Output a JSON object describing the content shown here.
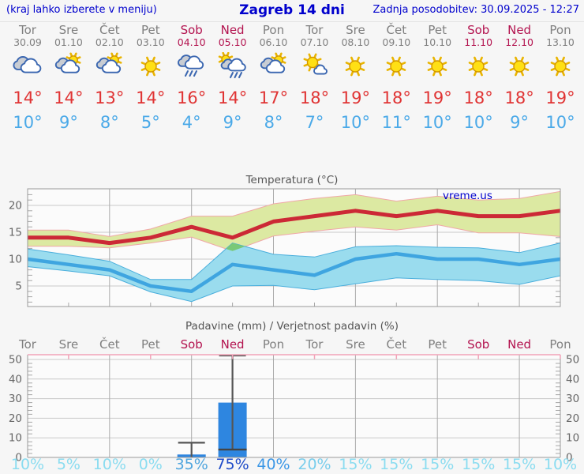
{
  "header": {
    "left": "(kraj lahko izberete v meniju)",
    "title": "Zagreb 14 dni",
    "updated": "Zadnja posodobitev: 30.09.2025 - 12:27"
  },
  "colors": {
    "header_blue": "#0000CD",
    "weekday_gray": "#7F7F7F",
    "weekend_red": "#B3134F",
    "tmax_red": "#E03434",
    "tmin_blue": "#4AA9E8",
    "max_line": "#CC2936",
    "max_band_fill": "#DCE9A2",
    "max_band_edge": "#F0A8A8",
    "min_line": "#3FA5E0",
    "min_band_fill": "#9ADCEE",
    "min_band_edge": "#49AEDC",
    "overlap_green": "#78C878",
    "bar_blue": "#2E86E0",
    "whisker_gray": "#555555",
    "grid_major": "#C9C9C9",
    "grid_vertical": "#ABABAB",
    "axis_border": "#999999",
    "minor_tick": "#A8A8A8",
    "precip_top_pink": "#F2A3B8",
    "chart_bg": "#FBFBFB"
  },
  "days": [
    {
      "name": "Tor",
      "date": "30.09",
      "weekend": false,
      "icon": "cloudy",
      "tmax_label": "14°",
      "tmin_label": "10°",
      "prob_label": "10%",
      "prob_color": "#8ADCF0"
    },
    {
      "name": "Sre",
      "date": "01.10",
      "weekend": false,
      "icon": "partly-cloudy",
      "tmax_label": "14°",
      "tmin_label": "9°",
      "prob_label": "5%",
      "prob_color": "#8ADCF0"
    },
    {
      "name": "Čet",
      "date": "02.10",
      "weekend": false,
      "icon": "partly-cloudy",
      "tmax_label": "13°",
      "tmin_label": "8°",
      "prob_label": "10%",
      "prob_color": "#8ADCF0"
    },
    {
      "name": "Pet",
      "date": "03.10",
      "weekend": false,
      "icon": "sunny",
      "tmax_label": "14°",
      "tmin_label": "5°",
      "prob_label": "0%",
      "prob_color": "#8ADCF0"
    },
    {
      "name": "Sob",
      "date": "04.10",
      "weekend": true,
      "icon": "rain",
      "tmax_label": "16°",
      "tmin_label": "4°",
      "prob_label": "35%",
      "prob_color": "#4FA5DE"
    },
    {
      "name": "Ned",
      "date": "05.10",
      "weekend": true,
      "icon": "sun-rain",
      "tmax_label": "14°",
      "tmin_label": "9°",
      "prob_label": "75%",
      "prob_color": "#1E4BC8"
    },
    {
      "name": "Pon",
      "date": "06.10",
      "weekend": false,
      "icon": "partly-cloudy",
      "tmax_label": "17°",
      "tmin_label": "8°",
      "prob_label": "40%",
      "prob_color": "#3C97E6"
    },
    {
      "name": "Tor",
      "date": "07.10",
      "weekend": false,
      "icon": "mostly-sunny",
      "tmax_label": "18°",
      "tmin_label": "7°",
      "prob_label": "20%",
      "prob_color": "#79CDEC"
    },
    {
      "name": "Sre",
      "date": "08.10",
      "weekend": false,
      "icon": "sunny",
      "tmax_label": "19°",
      "tmin_label": "10°",
      "prob_label": "15%",
      "prob_color": "#8ADCF0"
    },
    {
      "name": "Čet",
      "date": "09.10",
      "weekend": false,
      "icon": "sunny",
      "tmax_label": "18°",
      "tmin_label": "11°",
      "prob_label": "15%",
      "prob_color": "#8ADCF0"
    },
    {
      "name": "Pet",
      "date": "10.10",
      "weekend": false,
      "icon": "sunny",
      "tmax_label": "19°",
      "tmin_label": "10°",
      "prob_label": "15%",
      "prob_color": "#8ADCF0"
    },
    {
      "name": "Sob",
      "date": "11.10",
      "weekend": true,
      "icon": "sunny",
      "tmax_label": "18°",
      "tmin_label": "10°",
      "prob_label": "15%",
      "prob_color": "#8ADCF0"
    },
    {
      "name": "Ned",
      "date": "12.10",
      "weekend": true,
      "icon": "sunny",
      "tmax_label": "18°",
      "tmin_label": "9°",
      "prob_label": "15%",
      "prob_color": "#8ADCF0"
    },
    {
      "name": "Pon",
      "date": "13.10",
      "weekend": false,
      "icon": "sunny",
      "tmax_label": "19°",
      "tmin_label": "10°",
      "prob_label": "10%",
      "prob_color": "#8ADCF0"
    }
  ],
  "chart_data": [
    {
      "type": "line",
      "title": "Temperatura (°C)",
      "watermark": "vreme.us",
      "x_categories": [
        "Tor 30.09",
        "Sre 01.10",
        "Čet 02.10",
        "Pet 03.10",
        "Sob 04.10",
        "Ned 05.10",
        "Pon 06.10",
        "Tor 07.10",
        "Sre 08.10",
        "Čet 09.10",
        "Pet 10.10",
        "Sob 11.10",
        "Ned 12.10",
        "Pon 13.10"
      ],
      "series": [
        {
          "name": "tmax",
          "values": [
            14,
            14,
            13,
            14,
            16,
            14,
            17,
            18,
            19,
            18,
            19,
            18,
            18,
            19
          ]
        },
        {
          "name": "tmax_range_high",
          "values": [
            15.4,
            15.4,
            14.2,
            15.6,
            18,
            18,
            20.3,
            21.3,
            22,
            20.8,
            21.7,
            21,
            21.3,
            22.6
          ]
        },
        {
          "name": "tmax_range_low",
          "values": [
            12.4,
            12.4,
            12.1,
            13,
            14.1,
            11.5,
            14.3,
            15.2,
            16,
            15.4,
            16.4,
            14.9,
            14.9,
            14.2
          ]
        },
        {
          "name": "tmin",
          "values": [
            10,
            9,
            8,
            5,
            4,
            9,
            8,
            7,
            10,
            11,
            10,
            10,
            9,
            10
          ]
        },
        {
          "name": "tmin_range_high",
          "values": [
            11.9,
            10.8,
            9.6,
            6.2,
            6.2,
            13,
            10.9,
            10.4,
            12.3,
            12.5,
            12.2,
            12.1,
            11.2,
            13
          ]
        },
        {
          "name": "tmin_range_low",
          "values": [
            8.6,
            7.8,
            6.9,
            3.9,
            2.1,
            5,
            5.1,
            4.3,
            5.4,
            6.5,
            6.2,
            6,
            5.3,
            6.9
          ]
        }
      ],
      "ylim": [
        1.2,
        23.1
      ],
      "yticks": [
        5,
        10,
        15,
        20
      ],
      "grid": true,
      "legend": "none"
    },
    {
      "type": "bar",
      "title": "Padavine (mm) / Verjetnost padavin (%)",
      "categories": [
        "Tor",
        "Sre",
        "Čet",
        "Pet",
        "Sob",
        "Ned",
        "Pon",
        "Tor",
        "Sre",
        "Čet",
        "Pet",
        "Sob",
        "Ned",
        "Pon"
      ],
      "precip_mm": [
        0,
        0,
        0,
        0,
        1.5,
        28,
        0,
        0,
        0,
        0,
        0,
        0,
        0,
        0
      ],
      "whisker_low": [
        null,
        null,
        null,
        null,
        0,
        4,
        null,
        null,
        null,
        null,
        null,
        null,
        null,
        null
      ],
      "whisker_high": [
        null,
        null,
        null,
        null,
        7.5,
        52,
        null,
        null,
        null,
        null,
        null,
        null,
        null,
        null
      ],
      "probability_pct": [
        10,
        5,
        10,
        0,
        35,
        75,
        40,
        20,
        15,
        15,
        15,
        15,
        15,
        10
      ],
      "ylim": [
        0,
        52.4
      ],
      "yticks": [
        0,
        10,
        20,
        30,
        40,
        50
      ],
      "grid": true
    }
  ]
}
